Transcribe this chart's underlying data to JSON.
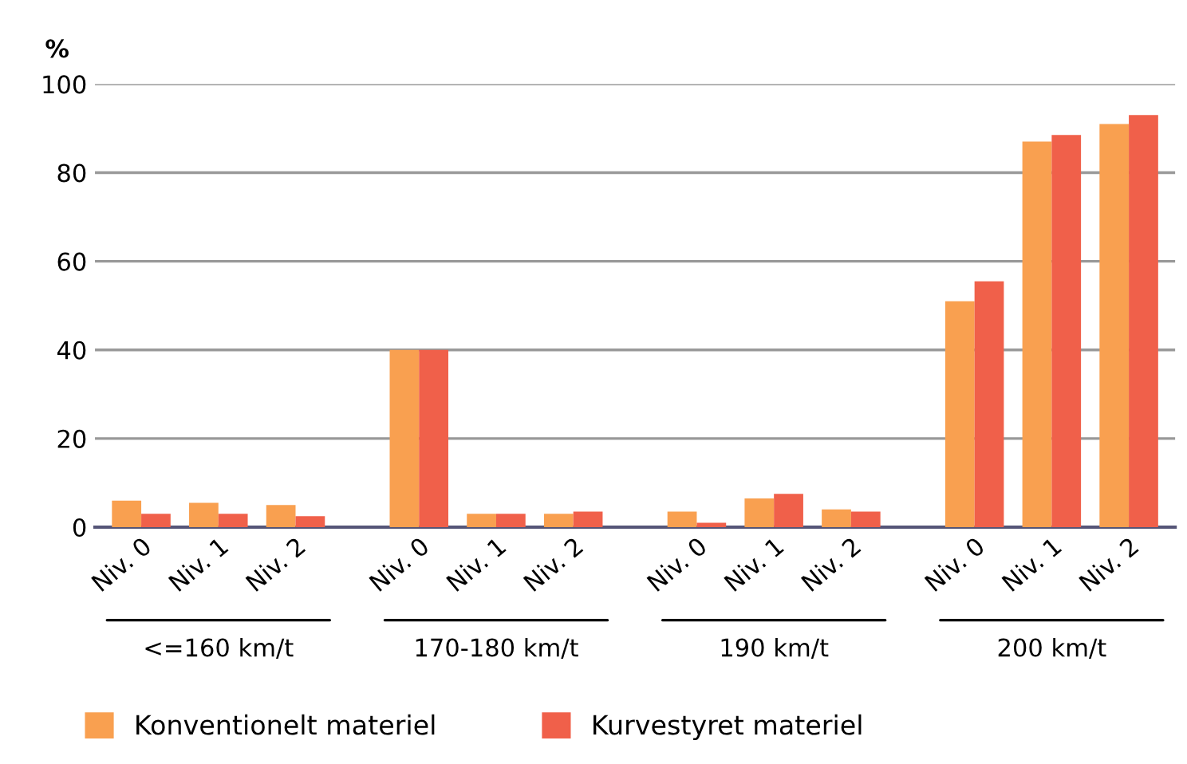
{
  "chart_data": {
    "type": "bar",
    "ylabel": "%",
    "categories": [
      "Niv. 0",
      "Niv. 1",
      "Niv. 2",
      "Niv. 0",
      "Niv. 1",
      "Niv. 2",
      "Niv. 0",
      "Niv. 1",
      "Niv. 2",
      "Niv. 0",
      "Niv. 1",
      "Niv. 2"
    ],
    "series": [
      {
        "name": "Konventionelt materiel",
        "color": "#f9a050",
        "values": [
          6,
          5.5,
          5,
          40,
          3,
          3,
          3.5,
          6.5,
          4,
          51,
          87,
          91
        ]
      },
      {
        "name": "Kurvestyret materiel",
        "color": "#f0604a",
        "values": [
          3,
          3,
          2.5,
          40,
          3,
          3.5,
          1,
          7.5,
          3.5,
          55.5,
          88.5,
          93
        ]
      }
    ],
    "annotations": [
      "<=160 km/t",
      "170-180 km/t",
      "190 km/t",
      "200 km/t"
    ],
    "ylim": [
      0,
      100
    ],
    "yticks": [
      0,
      20,
      40,
      60,
      80,
      100
    ],
    "grid": "y",
    "legend": "bottom"
  }
}
